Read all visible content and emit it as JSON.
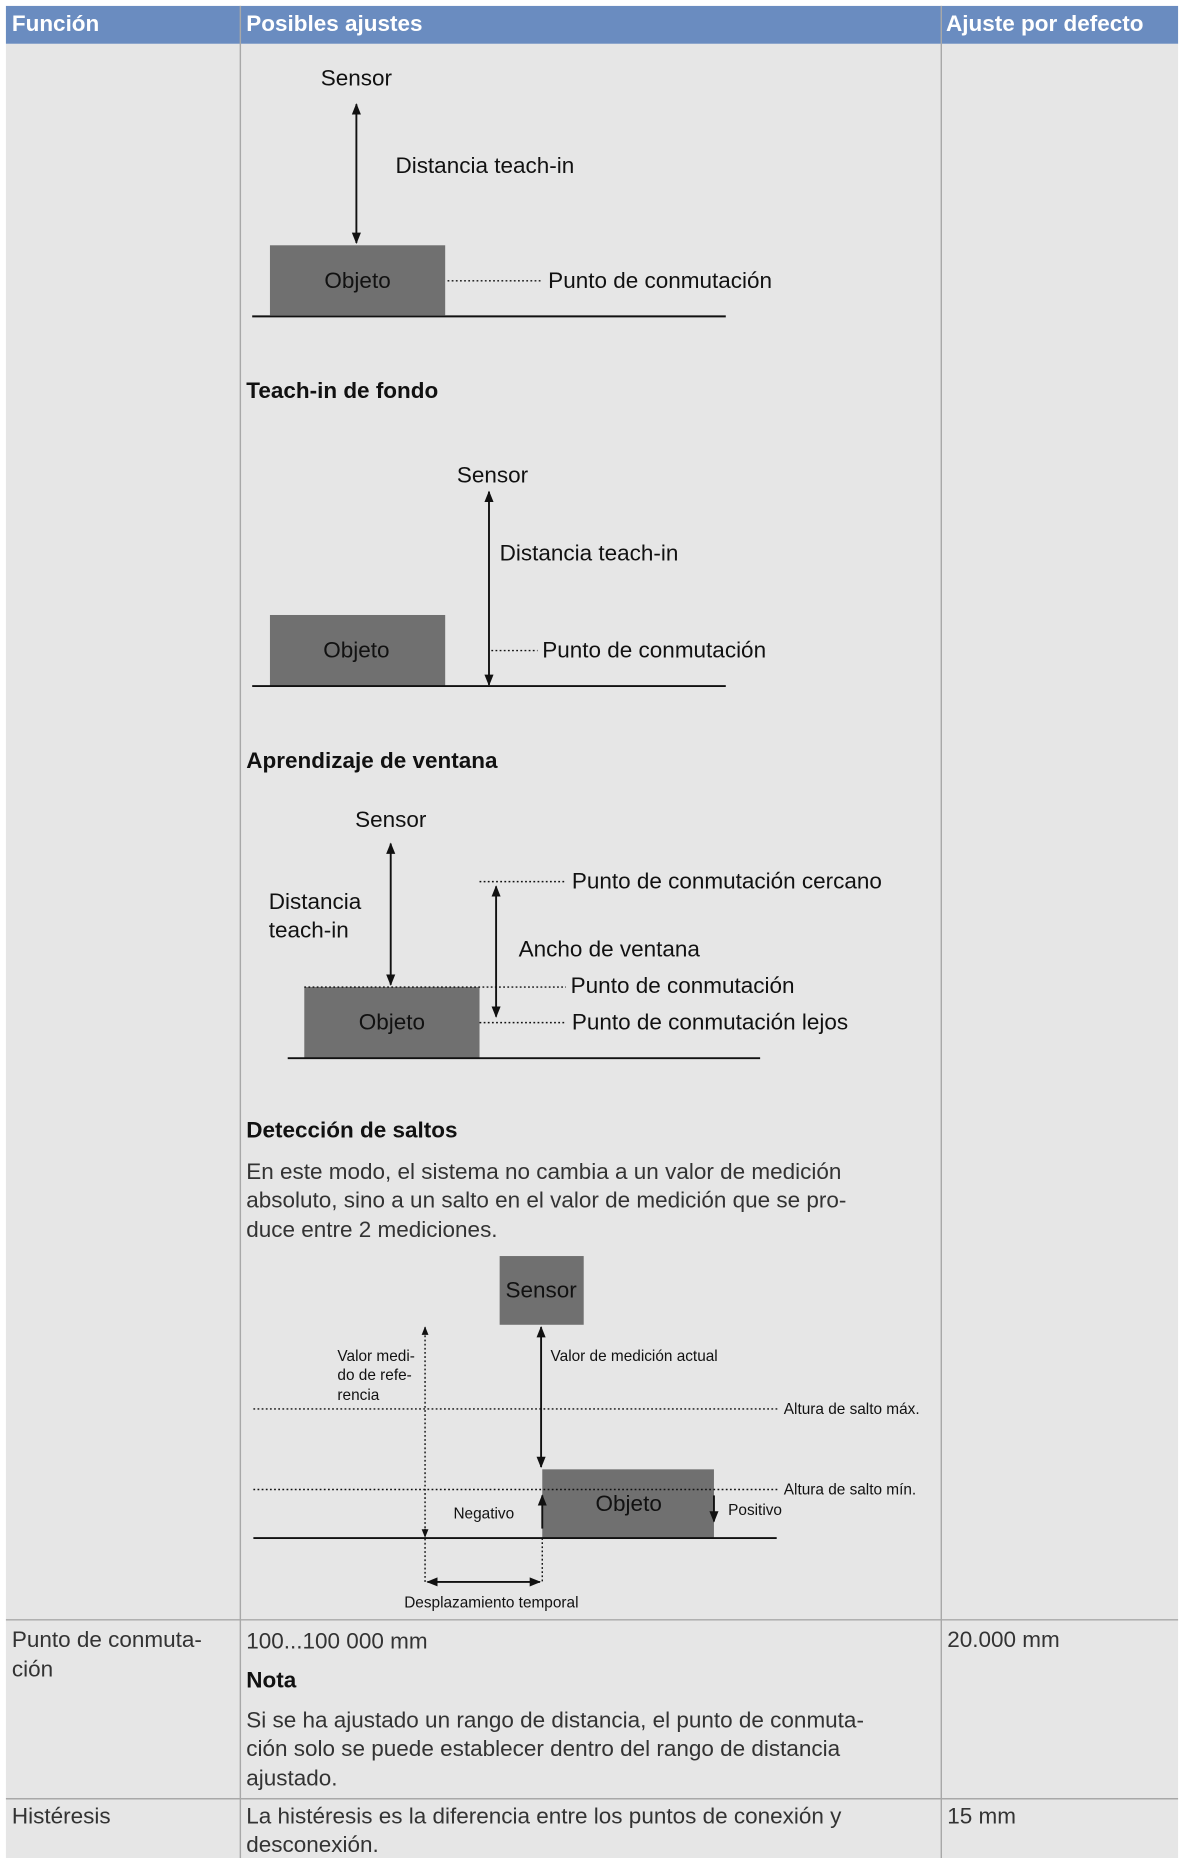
{
  "table": {
    "headers": [
      "Función",
      "Posibles ajustes",
      "Ajuste por defecto"
    ],
    "rows": [
      {
        "settings": {
          "diagram_object": {
            "sensor": "Sensor",
            "distance": "Distancia teach-in",
            "object": "Objeto",
            "switch_point": "Punto de conmutación"
          },
          "background": {
            "title": "Teach-in de fondo",
            "sensor": "Sensor",
            "distance": "Distancia teach-in",
            "object": "Objeto",
            "switch_point": "Punto de conmutación"
          },
          "window": {
            "title": "Aprendizaje de ventana",
            "sensor": "Sensor",
            "distance": [
              "Distancia",
              "teach-in"
            ],
            "near": "Punto de conmutación cercano",
            "width": "Ancho de ventana",
            "switch_point": "Punto de conmutación",
            "object": "Objeto",
            "far": "Punto de conmutación lejos"
          },
          "jump": {
            "title": "Detección de saltos",
            "text": [
              "En este modo, el sistema no cambia a un valor de medición",
              "absoluto, sino a un salto en el valor de medición que se pro-",
              "duce entre 2 mediciones."
            ],
            "sensor": "Sensor",
            "reference": [
              "Valor medi-",
              "do de refe-",
              "rencia"
            ],
            "current": "Valor de medición actual",
            "max": "Altura de salto máx.",
            "min": "Altura de salto mín.",
            "object": "Objeto",
            "negative": "Negativo",
            "positive": "Positivo",
            "shift": "Desplazamiento temporal"
          }
        }
      },
      {
        "function": [
          "Punto de conmuta-",
          "ción"
        ],
        "range": "100...100 000 mm",
        "note_title": "Nota",
        "note": [
          "Si se ha ajustado un rango de distancia, el punto de conmuta-",
          "ción solo se puede establecer dentro del rango de distancia",
          "ajustado."
        ],
        "default": "20.000 mm"
      },
      {
        "function": "Histéresis",
        "settings": [
          "La histéresis es la diferencia entre los puntos de conexión y",
          "desconexión."
        ],
        "default": "15 mm"
      }
    ]
  }
}
